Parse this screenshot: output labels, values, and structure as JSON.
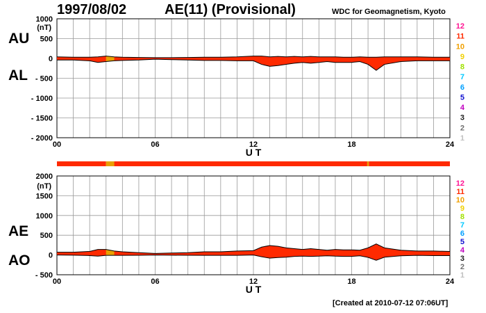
{
  "header": {
    "date": "1997/08/02",
    "title": "AE(11) (Provisional)",
    "organization": "WDC for Geomagnetism, Kyoto",
    "created": "[Created at 2010-07-12 07:06UT]"
  },
  "colors": {
    "fill_11": "#ff2a00",
    "fill_10": "#e8a000",
    "grid": "#999999",
    "line": "#000000"
  },
  "station_scale": {
    "labels": [
      "12",
      "11",
      "10",
      "9",
      "8",
      "7",
      "6",
      "5",
      "4",
      "3",
      "2",
      "1"
    ],
    "colors": [
      "#ff1493",
      "#ff2a00",
      "#f0a000",
      "#f0d000",
      "#a0e000",
      "#00c8ff",
      "#00a0ff",
      "#1010d0",
      "#c000c0",
      "#202020",
      "#707070",
      "#c0c0c0"
    ]
  },
  "chart_data": [
    {
      "type": "area",
      "panel": "AU/AL",
      "left_labels": [
        "AU",
        "AL"
      ],
      "y_unit": "(nT)",
      "ylim": [
        -2000,
        1000
      ],
      "yticks": [
        1000,
        500,
        0,
        -500,
        -1000,
        -1500,
        -2000
      ],
      "ytick_labels": [
        "1000",
        "500",
        "0",
        "- 500",
        "- 1000",
        "- 1500",
        "- 2000"
      ],
      "xlabel": "U T",
      "xlim": [
        0,
        24
      ],
      "xticks": [
        0,
        6,
        12,
        18,
        24
      ],
      "xtick_labels": [
        "00",
        "06",
        "12",
        "18",
        "24"
      ],
      "grid": true,
      "series": [
        {
          "name": "AU",
          "x": [
            0,
            1,
            2,
            2.5,
            3,
            3.5,
            4,
            5,
            6,
            7,
            8,
            9,
            10,
            11,
            12,
            12.5,
            13,
            13.5,
            14,
            14.5,
            15,
            15.5,
            16,
            16.5,
            17,
            17.5,
            18,
            18.5,
            19,
            19.5,
            20,
            21,
            22,
            23,
            24
          ],
          "values": [
            40,
            30,
            30,
            40,
            60,
            40,
            30,
            25,
            20,
            20,
            25,
            30,
            30,
            40,
            60,
            60,
            40,
            50,
            40,
            50,
            40,
            50,
            40,
            40,
            40,
            30,
            30,
            40,
            30,
            30,
            40,
            40,
            40,
            30,
            30
          ]
        },
        {
          "name": "AL",
          "x": [
            0,
            1,
            2,
            2.5,
            3,
            3.5,
            4,
            5,
            6,
            7,
            8,
            9,
            10,
            11,
            12,
            12.5,
            13,
            13.5,
            14,
            14.5,
            15,
            15.5,
            16,
            16.5,
            17,
            17.5,
            18,
            18.5,
            19,
            19.5,
            20,
            21,
            22,
            23,
            24
          ],
          "values": [
            -40,
            -40,
            -60,
            -100,
            -80,
            -60,
            -50,
            -40,
            -20,
            -30,
            -40,
            -50,
            -50,
            -60,
            -60,
            -150,
            -200,
            -180,
            -150,
            -120,
            -100,
            -120,
            -100,
            -80,
            -100,
            -100,
            -100,
            -80,
            -150,
            -300,
            -150,
            -80,
            -60,
            -60,
            -60
          ]
        }
      ],
      "activity_bar": {
        "x_ranges": [
          [
            0,
            3
          ],
          [
            3,
            3.5
          ],
          [
            3.5,
            18.95
          ],
          [
            18.95,
            19.05
          ],
          [
            19.05,
            24
          ]
        ],
        "levels": [
          11,
          10,
          11,
          10,
          11
        ]
      }
    },
    {
      "type": "area",
      "panel": "AE/AO",
      "left_labels": [
        "AE",
        "AO"
      ],
      "y_unit": "(nT)",
      "ylim": [
        -500,
        2000
      ],
      "yticks": [
        2000,
        1500,
        1000,
        500,
        0,
        -500
      ],
      "ytick_labels": [
        "2000",
        "1500",
        "1000",
        "500",
        "0",
        "- 500"
      ],
      "xlabel": "U T",
      "xlim": [
        0,
        24
      ],
      "xticks": [
        0,
        6,
        12,
        18,
        24
      ],
      "xtick_labels": [
        "00",
        "06",
        "12",
        "18",
        "24"
      ],
      "grid": true,
      "series": [
        {
          "name": "AE",
          "x": [
            0,
            1,
            2,
            2.5,
            3,
            3.5,
            4,
            5,
            6,
            7,
            8,
            9,
            10,
            11,
            12,
            12.5,
            13,
            13.5,
            14,
            14.5,
            15,
            15.5,
            16,
            16.5,
            17,
            17.5,
            18,
            18.5,
            19,
            19.5,
            20,
            21,
            22,
            23,
            24
          ],
          "values": [
            70,
            70,
            90,
            140,
            140,
            100,
            80,
            60,
            40,
            50,
            60,
            80,
            80,
            100,
            110,
            200,
            240,
            220,
            180,
            160,
            140,
            160,
            140,
            120,
            140,
            130,
            130,
            120,
            180,
            280,
            180,
            120,
            100,
            100,
            90
          ]
        },
        {
          "name": "AO",
          "x": [
            0,
            1,
            2,
            2.5,
            3,
            3.5,
            4,
            5,
            6,
            7,
            8,
            9,
            10,
            11,
            12,
            12.5,
            13,
            13.5,
            14,
            14.5,
            15,
            15.5,
            16,
            16.5,
            17,
            17.5,
            18,
            18.5,
            19,
            19.5,
            20,
            21,
            22,
            23,
            24
          ],
          "values": [
            0,
            -5,
            -15,
            -30,
            -10,
            -10,
            -10,
            -8,
            0,
            -5,
            -8,
            -10,
            -10,
            -10,
            0,
            -45,
            -80,
            -65,
            -55,
            -35,
            -30,
            -35,
            -30,
            -20,
            -30,
            -35,
            -35,
            -20,
            -60,
            -135,
            -55,
            -20,
            -10,
            -15,
            -15
          ]
        }
      ]
    }
  ]
}
